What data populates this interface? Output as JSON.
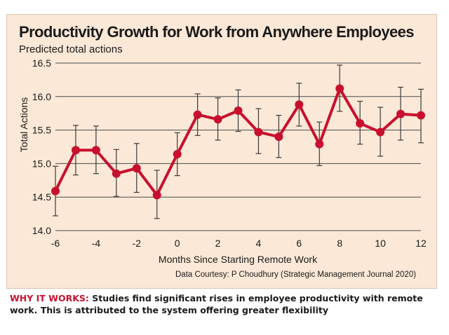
{
  "chart_data": {
    "type": "line",
    "title": "Productivity Growth for Work from Anywhere Employees",
    "subtitle": "Predicted total actions",
    "xlabel": "Months Since Starting Remote Work",
    "ylabel": "Total Actions",
    "x_ticks": [
      "-6",
      "-4",
      "-2",
      "0",
      "2",
      "4",
      "6",
      "8",
      "10",
      "12"
    ],
    "y_ticks": [
      "14.0",
      "14.5",
      "15.0",
      "15.5",
      "16.0",
      "16.5"
    ],
    "xlim": [
      -6,
      12
    ],
    "ylim": [
      14.0,
      16.5
    ],
    "grid": "horizontal",
    "line_color": "#c8102e",
    "x": [
      -6,
      -5,
      -4,
      -3,
      -2,
      -1,
      0,
      1,
      2,
      3,
      4,
      5,
      6,
      7,
      8,
      9,
      10,
      11,
      12
    ],
    "values": [
      14.59,
      15.2,
      15.2,
      14.85,
      14.93,
      14.53,
      15.14,
      15.73,
      15.66,
      15.79,
      15.47,
      15.4,
      15.88,
      15.29,
      16.12,
      15.6,
      15.47,
      15.74,
      15.72
    ],
    "error_low": [
      14.22,
      14.83,
      14.85,
      14.51,
      14.57,
      14.18,
      14.82,
      15.42,
      15.35,
      15.48,
      15.15,
      15.09,
      15.56,
      14.97,
      15.78,
      15.29,
      15.11,
      15.35,
      15.31
    ],
    "error_high": [
      14.96,
      15.57,
      15.56,
      15.21,
      15.3,
      14.9,
      15.46,
      16.04,
      15.98,
      16.1,
      15.82,
      15.72,
      16.2,
      15.62,
      16.47,
      15.93,
      15.84,
      16.14,
      16.11
    ]
  },
  "source": "Data Courtesy: P Choudhury (Strategic Management Journal 2020)",
  "footer": {
    "lead": "WHY IT WORKS:",
    "text": " Studies find significant rises in employee productivity with remote work. This is attributed to the system offering greater flexibility"
  }
}
